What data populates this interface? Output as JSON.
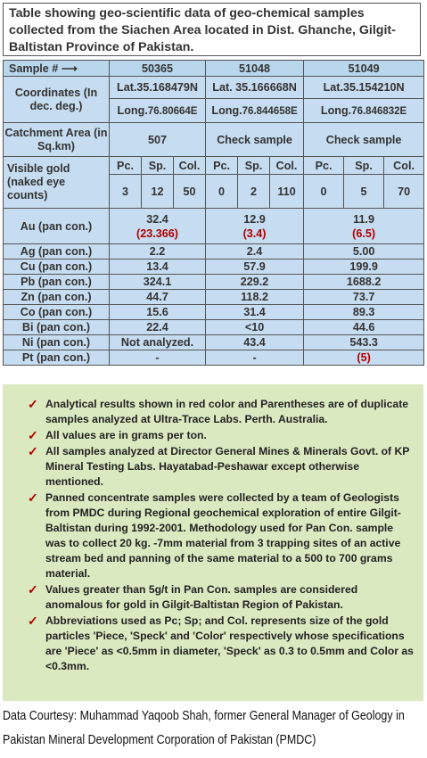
{
  "title": "Table showing geo-scientific data of geo-chemical samples collected from the Siachen Area located in Dist. Ghanche, Gilgit-Baltistan Province of Pakistan.",
  "table": {
    "sample_label": "Sample #",
    "samples": [
      "50365",
      "51048",
      "51049"
    ],
    "coordinates_label": "Coordinates (In dec. deg.)",
    "lat": [
      "Lat.35.168479N",
      "Lat. 35.166668N",
      "Lat.35.154210N"
    ],
    "long_prefix": "Long.",
    "long": [
      "76.80664E",
      "76.844658E",
      "76.846832E"
    ],
    "catchment_label": "Catchment Area (in Sq.km)",
    "catchment": [
      "507",
      "Check sample",
      "Check sample"
    ],
    "visible_gold_label": "Visible gold (naked eye counts)",
    "gold_cols": [
      "Pc.",
      "Sp.",
      "Col."
    ],
    "gold_counts": [
      [
        "3",
        "12",
        "50"
      ],
      [
        "0",
        "2",
        "110"
      ],
      [
        "0",
        "5",
        "70"
      ]
    ],
    "au_label": "Au (pan con.)",
    "au": [
      "32.4",
      "12.9",
      "11.9"
    ],
    "au_dup": [
      "(23.366)",
      "(3.4)",
      "(6.5)"
    ],
    "elements": [
      {
        "label": "Ag (pan con.)",
        "values": [
          "2.2",
          "2.4",
          "5.00"
        ]
      },
      {
        "label": "Cu (pan con.)",
        "values": [
          "13.4",
          "57.9",
          "199.9"
        ]
      },
      {
        "label": "Pb (pan con.)",
        "values": [
          "324.1",
          "229.2",
          "1688.2"
        ]
      },
      {
        "label": "Zn (pan con.)",
        "values": [
          "44.7",
          "118.2",
          "73.7"
        ]
      },
      {
        "label": "Co (pan con.)",
        "values": [
          "15.6",
          "31.4",
          "89.3"
        ]
      },
      {
        "label": "Bi (pan con.)",
        "values": [
          "22.4",
          "<10",
          "44.6"
        ]
      },
      {
        "label": "Ni (pan con.)",
        "values": [
          "Not analyzed.",
          "43.4",
          "543.3"
        ]
      },
      {
        "label": "Pt (pan con.)",
        "values": [
          "-",
          "-",
          "(5)"
        ]
      }
    ]
  },
  "notes": [
    "Analytical results shown in red color and Parentheses are of duplicate samples analyzed at Ultra-Trace Labs. Perth. Australia.",
    "All values are in grams per ton.",
    "All samples analyzed at Director General Mines & Minerals Govt. of KP Mineral Testing Labs. Hayatabad-Peshawar except otherwise mentioned.",
    "Panned concentrate samples were collected by a team of Geologists from PMDC during Regional geochemical exploration of entire Gilgit-Baltistan during 1992-2001. Methodology used for Pan Con. sample was to collect 20 kg. -7mm material from 3 trapping sites of an active stream bed and panning of the same material to a 500 to 700 grams material.",
    "Values greater than 5g/t in Pan Con. samples are considered anomalous for gold in Gilgit-Baltistan Region of Pakistan.",
    "Abbreviations used as Pc; Sp; and Col. represents size of the gold particles 'Piece, 'Speck' and 'Color' respectively whose specifications are 'Piece' as <0.5mm in diameter, 'Speck' as 0.3 to 0.5mm and Color as <0.3mm."
  ],
  "footer_line1": "Data Courtesy: Muhammad Yaqoob Shah, former General Manager of Geology in",
  "footer_line2": "Pakistan Mineral Development Corporation of Pakistan (PMDC)"
}
